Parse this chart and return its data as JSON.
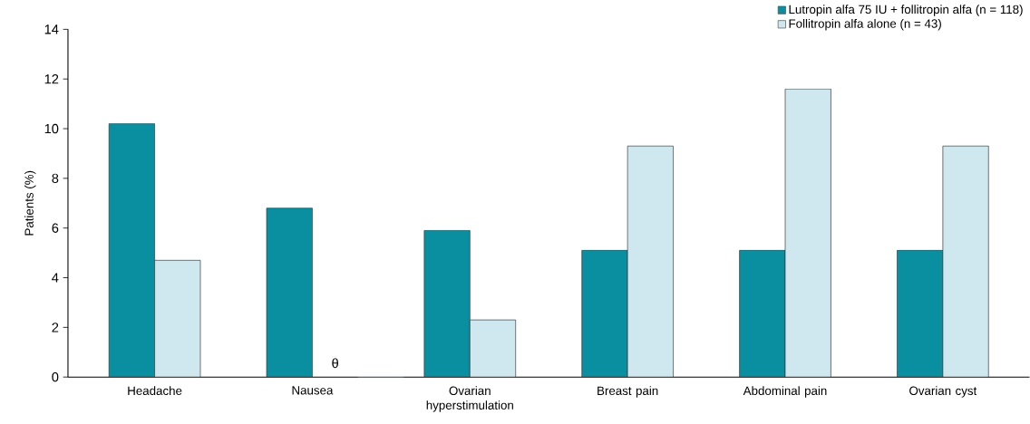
{
  "chart_data": {
    "type": "bar",
    "ylabel": "Patients (%)",
    "categories": [
      "Headache",
      "Nausea",
      "Ovarian hyperstimulation",
      "Breast pain",
      "Abdominal pain",
      "Ovarian cyst"
    ],
    "series": [
      {
        "name": "Lutropin alfa 75 IU + follitropin alfa (n = 118)",
        "color": "#0a8fa0",
        "values": [
          10.2,
          6.8,
          5.9,
          5.1,
          5.1,
          5.1
        ]
      },
      {
        "name": "Follitropin alfa alone (n = 43)",
        "color": "#cfe7ee",
        "values": [
          4.7,
          0,
          2.3,
          9.3,
          11.6,
          9.3
        ]
      }
    ],
    "ylim": [
      0,
      14
    ],
    "yticks": [
      0,
      2,
      4,
      6,
      8,
      10,
      12,
      14
    ],
    "annotations": [
      {
        "text": "θ",
        "x": "Nausea",
        "y": 0
      }
    ],
    "legend": "top right",
    "grid": false
  }
}
